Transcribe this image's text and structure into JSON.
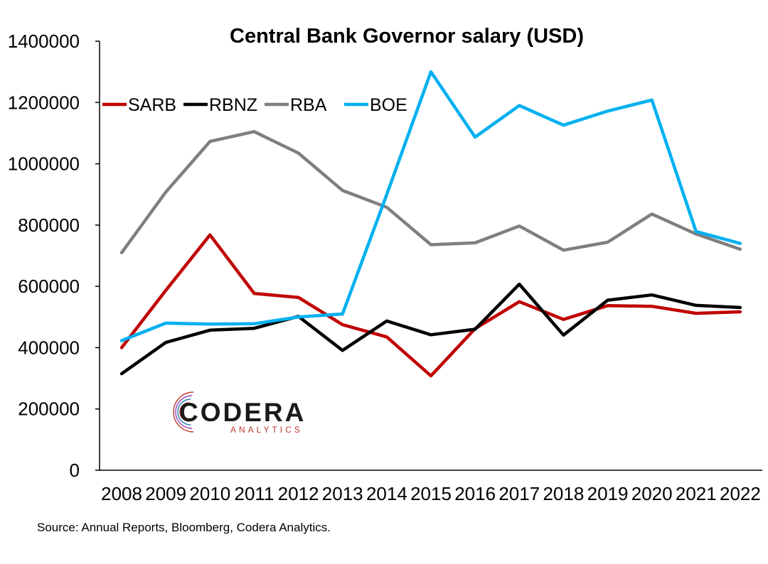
{
  "chart_data": {
    "type": "line",
    "title": "Central Bank Governor salary (USD)",
    "xlabel": "",
    "ylabel": "",
    "x": [
      "2008",
      "2009",
      "2010",
      "2011",
      "2012",
      "2013",
      "2014",
      "2015",
      "2016",
      "2017",
      "2018",
      "2019",
      "2020",
      "2021",
      "2022"
    ],
    "ylim": [
      0,
      1400000
    ],
    "yticks": [
      "0",
      "200000",
      "400000",
      "600000",
      "800000",
      "1000000",
      "1200000",
      "1400000"
    ],
    "grid": false,
    "legend_position": "top-left",
    "series": [
      {
        "name": "SARB",
        "color": "#c00000",
        "values": [
          400000,
          587000,
          768000,
          577000,
          564000,
          475000,
          435000,
          308000,
          462000,
          550000,
          492000,
          537000,
          535000,
          512000,
          517000
        ]
      },
      {
        "name": "RBNZ",
        "color": "#000000",
        "values": [
          315000,
          417000,
          457000,
          463000,
          502000,
          391000,
          487000,
          442000,
          460000,
          607000,
          441000,
          555000,
          572000,
          538000,
          531000
        ]
      },
      {
        "name": "RBA",
        "color": "#7f7f7f",
        "values": [
          710000,
          908000,
          1073000,
          1105000,
          1035000,
          913000,
          858000,
          736000,
          742000,
          797000,
          718000,
          744000,
          836000,
          771000,
          721000
        ]
      },
      {
        "name": "BOE",
        "color": "#00b0f0",
        "values": [
          423000,
          480000,
          477000,
          478000,
          500000,
          510000,
          900000,
          1300000,
          1087000,
          1190000,
          1126000,
          1172000,
          1208000,
          779000,
          740000
        ]
      }
    ]
  },
  "logo": {
    "name": "CODERA",
    "sub": "ANALYTICS"
  },
  "source": "Source: Annual Reports, Bloomberg, Codera Analytics."
}
